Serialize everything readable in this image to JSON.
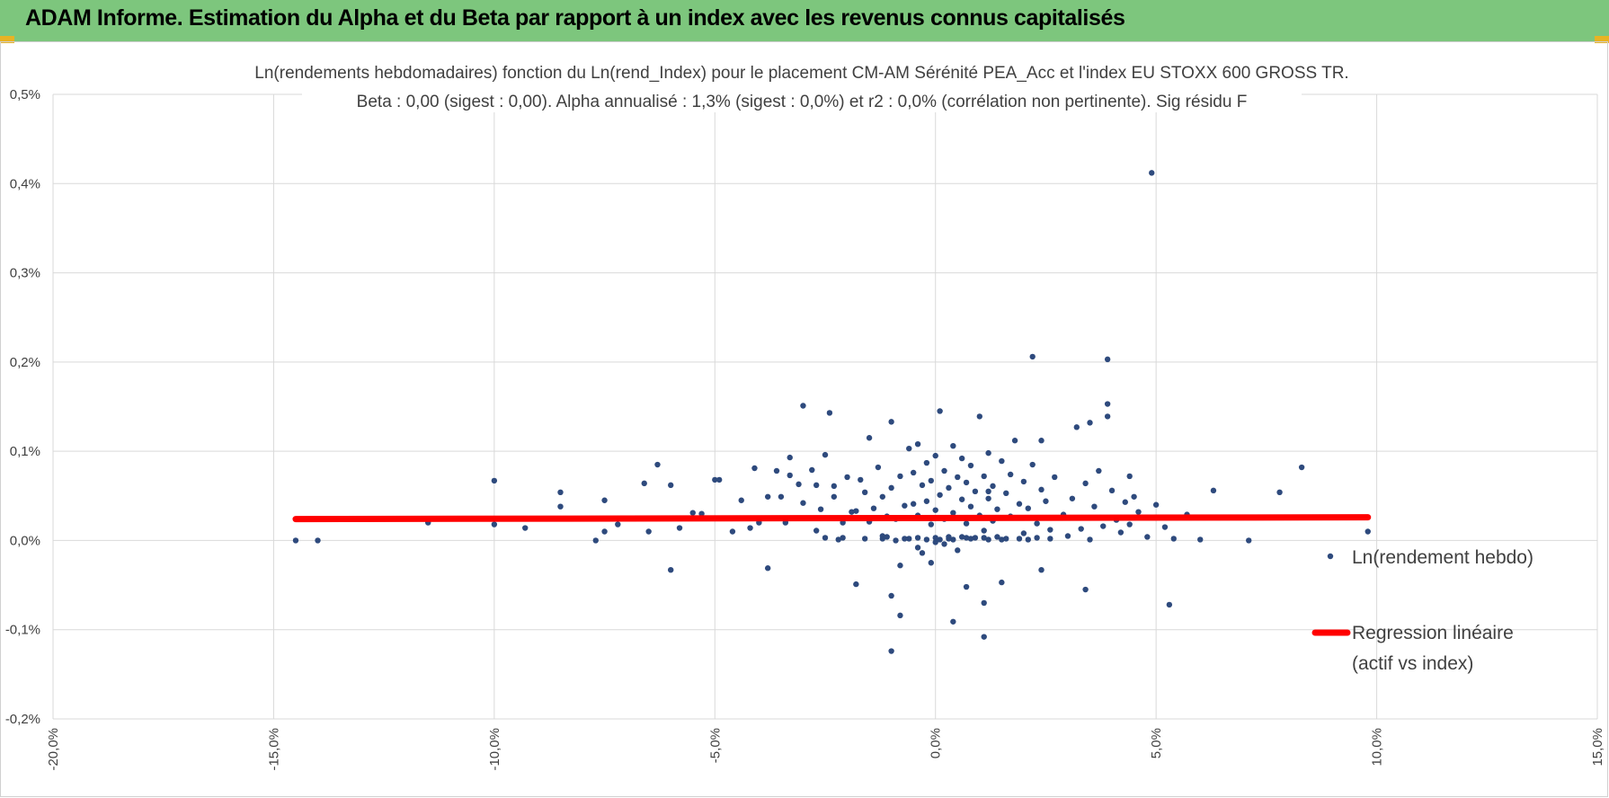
{
  "banner": {
    "title": "ADAM Informe. Estimation du Alpha et du Beta par rapport à un index avec les revenus connus capitalisés",
    "background_color": "#7dc67d",
    "corner_color": "#e8b324"
  },
  "chart_data": {
    "type": "scatter",
    "title_line1": "Ln(rendements hebdomadaires) fonction du Ln(rend_Index) pour le placement CM-AM Sérénité PEA_Acc et l'index EU STOXX 600 GROSS TR.",
    "title_line2": "Beta : 0,00 (sigest : 0,00). Alpha annualisé : 1,3% (sigest : 0,0%) et r2 : 0,0% (corrélation non pertinente). Sig résidu F",
    "xlabel": "",
    "ylabel": "",
    "xlim": [
      -0.2,
      0.15
    ],
    "ylim": [
      -0.002,
      0.005
    ],
    "x_ticks": [
      -0.2,
      -0.15,
      -0.1,
      -0.05,
      0.0,
      0.05,
      0.1,
      0.15
    ],
    "x_tick_labels": [
      "-20,0%",
      "-15,0%",
      "-10,0%",
      "-5,0%",
      "0,0%",
      "5,0%",
      "10,0%",
      "15,0%"
    ],
    "y_ticks": [
      -0.002,
      -0.001,
      0.0,
      0.001,
      0.002,
      0.003,
      0.004,
      0.005
    ],
    "y_tick_labels": [
      "-0,2%",
      "-0,1%",
      "0,0%",
      "0,1%",
      "0,2%",
      "0,3%",
      "0,4%",
      "0,5%"
    ],
    "grid": true,
    "legend_position": "right",
    "series": [
      {
        "name": "Ln(rendement hebdo)",
        "kind": "scatter",
        "color": "#2e4a7d",
        "points": [
          [
            -0.145,
            0.0
          ],
          [
            -0.14,
            0.0
          ],
          [
            -0.115,
            0.0002
          ],
          [
            -0.1,
            0.00067
          ],
          [
            -0.1,
            0.00018
          ],
          [
            -0.093,
            0.00014
          ],
          [
            -0.085,
            0.00054
          ],
          [
            -0.085,
            0.00038
          ],
          [
            -0.077,
            0.0
          ],
          [
            -0.075,
            0.00045
          ],
          [
            -0.075,
            0.0001
          ],
          [
            -0.072,
            0.00018
          ],
          [
            -0.066,
            0.00064
          ],
          [
            -0.065,
            0.0001
          ],
          [
            -0.063,
            0.00085
          ],
          [
            -0.06,
            0.00062
          ],
          [
            -0.06,
            -0.00033
          ],
          [
            -0.058,
            0.00014
          ],
          [
            -0.055,
            0.00031
          ],
          [
            -0.053,
            0.0003
          ],
          [
            -0.05,
            0.00068
          ],
          [
            -0.049,
            0.00068
          ],
          [
            -0.046,
            0.0001
          ],
          [
            -0.044,
            0.00045
          ],
          [
            -0.042,
            0.00014
          ],
          [
            -0.041,
            0.00081
          ],
          [
            -0.04,
            0.0002
          ],
          [
            -0.038,
            0.00049
          ],
          [
            -0.038,
            -0.00031
          ],
          [
            -0.036,
            0.00078
          ],
          [
            -0.035,
            0.00049
          ],
          [
            -0.034,
            0.0002
          ],
          [
            -0.033,
            0.00093
          ],
          [
            -0.031,
            0.00063
          ],
          [
            -0.03,
            0.00042
          ],
          [
            -0.03,
            0.00151
          ],
          [
            -0.028,
            0.00079
          ],
          [
            -0.027,
            0.00011
          ],
          [
            -0.027,
            0.00062
          ],
          [
            -0.026,
            0.00035
          ],
          [
            -0.025,
            0.00096
          ],
          [
            -0.024,
            0.00025
          ],
          [
            -0.023,
            0.00049
          ],
          [
            -0.023,
            0.00061
          ],
          [
            -0.022,
            1e-05
          ],
          [
            -0.021,
            0.0002
          ],
          [
            -0.02,
            0.00071
          ],
          [
            -0.019,
            0.00032
          ],
          [
            -0.018,
            -0.00049
          ],
          [
            -0.018,
            0.00033
          ],
          [
            -0.017,
            0.00068
          ],
          [
            -0.016,
            0.00054
          ],
          [
            -0.015,
            0.00115
          ],
          [
            -0.015,
            0.00021
          ],
          [
            -0.014,
            0.00036
          ],
          [
            -0.013,
            0.00082
          ],
          [
            -0.012,
            0.00049
          ],
          [
            -0.012,
            5e-05
          ],
          [
            -0.011,
            0.00027
          ],
          [
            -0.01,
            0.00059
          ],
          [
            -0.01,
            0.00133
          ],
          [
            -0.009,
            0.00024
          ],
          [
            -0.008,
            0.00072
          ],
          [
            -0.008,
            -0.00028
          ],
          [
            -0.007,
            0.00039
          ],
          [
            -0.006,
            0.00103
          ],
          [
            -0.006,
            2e-05
          ],
          [
            -0.005,
            0.00041
          ],
          [
            -0.005,
            0.00076
          ],
          [
            -0.004,
            0.00108
          ],
          [
            -0.004,
            0.00028
          ],
          [
            -0.003,
            0.00062
          ],
          [
            -0.003,
            -0.00014
          ],
          [
            -0.002,
            0.00044
          ],
          [
            -0.002,
            0.00087
          ],
          [
            -0.001,
            0.00018
          ],
          [
            -0.001,
            0.00067
          ],
          [
            0.0,
            0.00034
          ],
          [
            0.0,
            0.00095
          ],
          [
            0.0,
            -2e-05
          ],
          [
            0.001,
            0.00051
          ],
          [
            0.001,
            0.00145
          ],
          [
            0.002,
            0.00024
          ],
          [
            0.002,
            0.00078
          ],
          [
            0.003,
            4e-05
          ],
          [
            0.003,
            0.00059
          ],
          [
            0.004,
            0.00106
          ],
          [
            0.004,
            0.00031
          ],
          [
            0.005,
            0.00071
          ],
          [
            0.005,
            -0.00011
          ],
          [
            0.006,
            0.00046
          ],
          [
            0.006,
            0.00092
          ],
          [
            0.007,
            0.00019
          ],
          [
            0.007,
            0.00065
          ],
          [
            0.008,
            0.00038
          ],
          [
            0.008,
            0.00084
          ],
          [
            0.009,
            3e-05
          ],
          [
            0.009,
            0.00055
          ],
          [
            0.01,
            0.00028
          ],
          [
            0.01,
            0.00139
          ],
          [
            0.011,
            0.00072
          ],
          [
            0.011,
            0.00011
          ],
          [
            0.012,
            0.00047
          ],
          [
            0.012,
            0.00098
          ],
          [
            0.013,
            0.00022
          ],
          [
            0.013,
            0.00061
          ],
          [
            0.014,
            0.00035
          ],
          [
            0.015,
            0.00089
          ],
          [
            0.015,
            1e-05
          ],
          [
            0.016,
            0.00053
          ],
          [
            0.017,
            0.00027
          ],
          [
            0.017,
            0.00074
          ],
          [
            0.018,
            0.00112
          ],
          [
            0.019,
            0.00041
          ],
          [
            0.02,
            0.00066
          ],
          [
            0.02,
            8e-05
          ],
          [
            0.021,
            0.00036
          ],
          [
            0.022,
            0.00085
          ],
          [
            0.023,
            0.00019
          ],
          [
            0.024,
            0.00057
          ],
          [
            0.025,
            0.00044
          ],
          [
            0.026,
            0.00012
          ],
          [
            0.027,
            0.00071
          ],
          [
            0.029,
            0.00029
          ],
          [
            0.03,
            5e-05
          ],
          [
            0.031,
            0.00047
          ],
          [
            0.032,
            0.00127
          ],
          [
            0.033,
            0.00013
          ],
          [
            0.034,
            0.00064
          ],
          [
            0.035,
            1e-05
          ],
          [
            0.036,
            0.00038
          ],
          [
            0.037,
            0.00078
          ],
          [
            0.038,
            0.00016
          ],
          [
            0.039,
            0.00139
          ],
          [
            0.04,
            0.00056
          ],
          [
            0.041,
            0.00023
          ],
          [
            0.042,
            9e-05
          ],
          [
            0.043,
            0.00043
          ],
          [
            0.044,
            0.00018
          ],
          [
            0.046,
            0.00032
          ],
          [
            0.048,
            4e-05
          ],
          [
            0.05,
            0.0004
          ],
          [
            0.052,
            0.00015
          ],
          [
            0.054,
            2e-05
          ],
          [
            0.057,
            0.00029
          ],
          [
            0.06,
            1e-05
          ],
          [
            0.063,
            0.00056
          ],
          [
            0.071,
            0.0
          ],
          [
            0.078,
            0.00054
          ],
          [
            0.083,
            0.00082
          ],
          [
            0.098,
            0.0001
          ],
          [
            -0.012,
            2e-05
          ],
          [
            -0.004,
            3e-05
          ],
          [
            0.006,
            4e-05
          ],
          [
            0.016,
            2e-05
          ],
          [
            -0.021,
            3e-05
          ],
          [
            -0.009,
            0.0
          ],
          [
            0.001,
            1e-05
          ],
          [
            0.011,
            3e-05
          ],
          [
            0.021,
            1e-05
          ],
          [
            0.007,
            3e-05
          ],
          [
            -0.016,
            2e-05
          ],
          [
            0.026,
            2e-05
          ],
          [
            -0.002,
            1e-05
          ],
          [
            0.008,
            2e-05
          ],
          [
            0.004,
            1e-05
          ],
          [
            -0.007,
            2e-05
          ],
          [
            0.014,
            4e-05
          ],
          [
            0.019,
            2e-05
          ],
          [
            -0.025,
            3e-05
          ],
          [
            0.0,
            3e-05
          ],
          [
            0.003,
            2e-05
          ],
          [
            0.012,
            1e-05
          ],
          [
            -0.011,
            4e-05
          ],
          [
            0.023,
            3e-05
          ],
          [
            -0.004,
            -8e-05
          ],
          [
            0.002,
            -4e-05
          ],
          [
            -0.01,
            -0.00062
          ],
          [
            -0.008,
            -0.00084
          ],
          [
            -0.01,
            -0.00124
          ],
          [
            0.004,
            -0.00091
          ],
          [
            0.011,
            -0.00108
          ],
          [
            0.011,
            -0.0007
          ],
          [
            0.015,
            -0.00047
          ],
          [
            0.034,
            -0.00055
          ],
          [
            0.053,
            -0.00072
          ],
          [
            0.024,
            -0.00033
          ],
          [
            -0.001,
            -0.00025
          ],
          [
            0.007,
            -0.00052
          ],
          [
            0.049,
            0.00412
          ],
          [
            0.022,
            0.00206
          ],
          [
            0.039,
            0.00203
          ],
          [
            0.039,
            0.00153
          ],
          [
            0.035,
            0.00132
          ],
          [
            0.024,
            0.00112
          ],
          [
            0.045,
            0.00049
          ],
          [
            0.044,
            0.00072
          ],
          [
            -0.024,
            0.00143
          ],
          [
            -0.033,
            0.00073
          ],
          [
            0.012,
            0.00055
          ]
        ]
      },
      {
        "name": "Regression linéaire (actif vs index)",
        "name_line1": "Regression linéaire",
        "name_line2": "(actif vs index)",
        "kind": "line",
        "color": "#ff0000",
        "x": [
          -0.145,
          0.098
        ],
        "y": [
          0.00024,
          0.00026
        ]
      }
    ]
  }
}
